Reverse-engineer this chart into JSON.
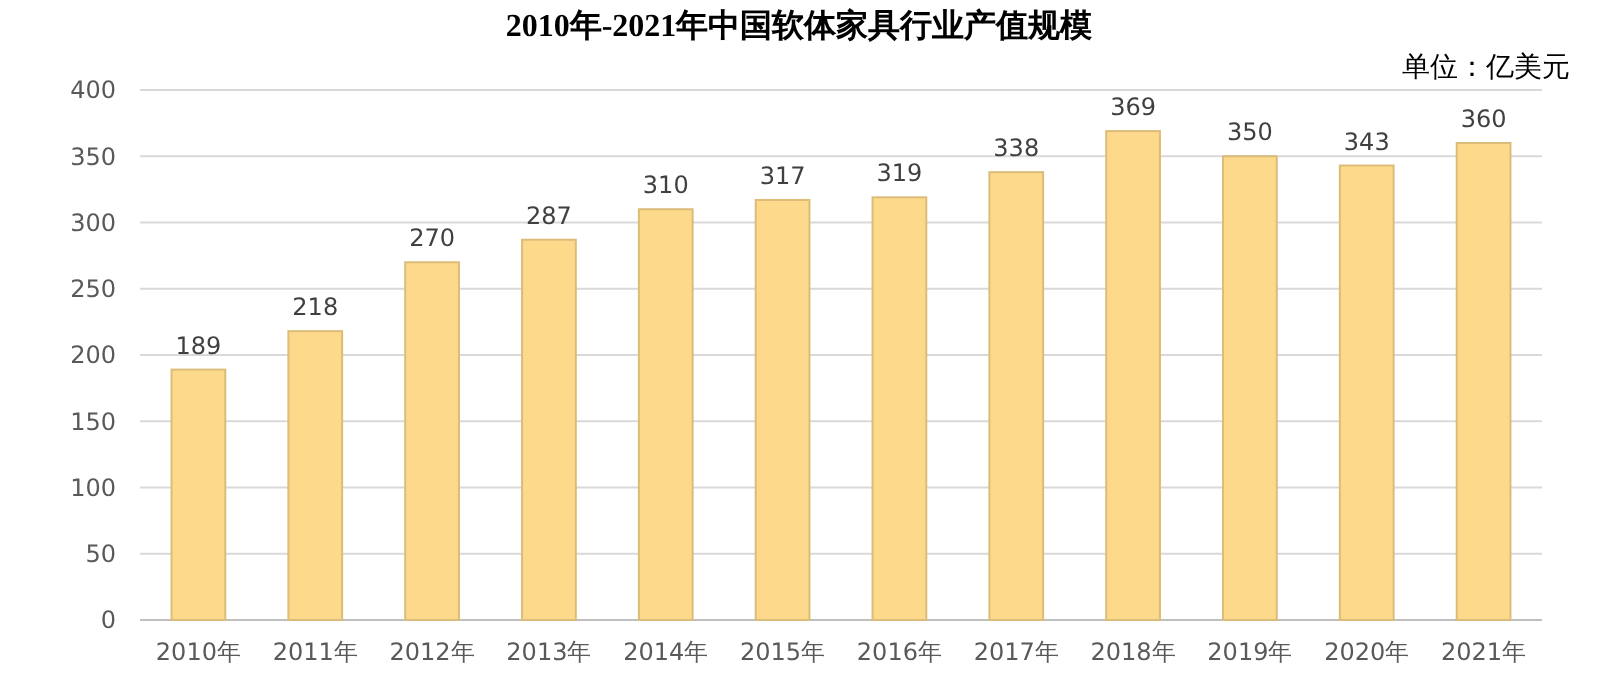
{
  "chart_data": {
    "type": "bar",
    "title": "2010年-2021年中国软体家具行业产值规模",
    "annotations": [
      "单位：亿美元"
    ],
    "categories": [
      "2010年",
      "2011年",
      "2012年",
      "2013年",
      "2014年",
      "2015年",
      "2016年",
      "2017年",
      "2018年",
      "2019年",
      "2020年",
      "2021年"
    ],
    "values": [
      189,
      218,
      270,
      287,
      310,
      317,
      319,
      338,
      369,
      350,
      343,
      360
    ],
    "color": "#fdd98c",
    "ylim": [
      0,
      400
    ],
    "yticks": [
      0,
      50,
      100,
      150,
      200,
      250,
      300,
      350,
      400
    ],
    "grid": "y",
    "data_labels": true
  }
}
